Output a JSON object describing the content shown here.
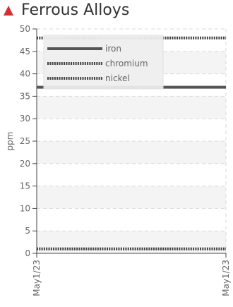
{
  "header": {
    "title": "Ferrous Alloys",
    "alert_icon": "warning-triangle-icon",
    "alert_color": "#d32f2f"
  },
  "chart_data": {
    "type": "line",
    "title": "Ferrous Alloys",
    "xlabel": "",
    "ylabel": "ppm",
    "ylim": [
      0,
      50
    ],
    "yticks": [
      0,
      5,
      10,
      15,
      20,
      25,
      30,
      35,
      40,
      45,
      50
    ],
    "x": [
      "May1/23",
      "May1/23"
    ],
    "grid": true,
    "legend_position": "top-left",
    "series": [
      {
        "name": "iron",
        "values": [
          37,
          37
        ],
        "color": "#555555",
        "style": "solid"
      },
      {
        "name": "chromium",
        "values": [
          48,
          48
        ],
        "color": "#444444",
        "style": "dotted"
      },
      {
        "name": "nickel",
        "values": [
          1,
          1
        ],
        "color": "#444444",
        "style": "dotted"
      }
    ]
  }
}
